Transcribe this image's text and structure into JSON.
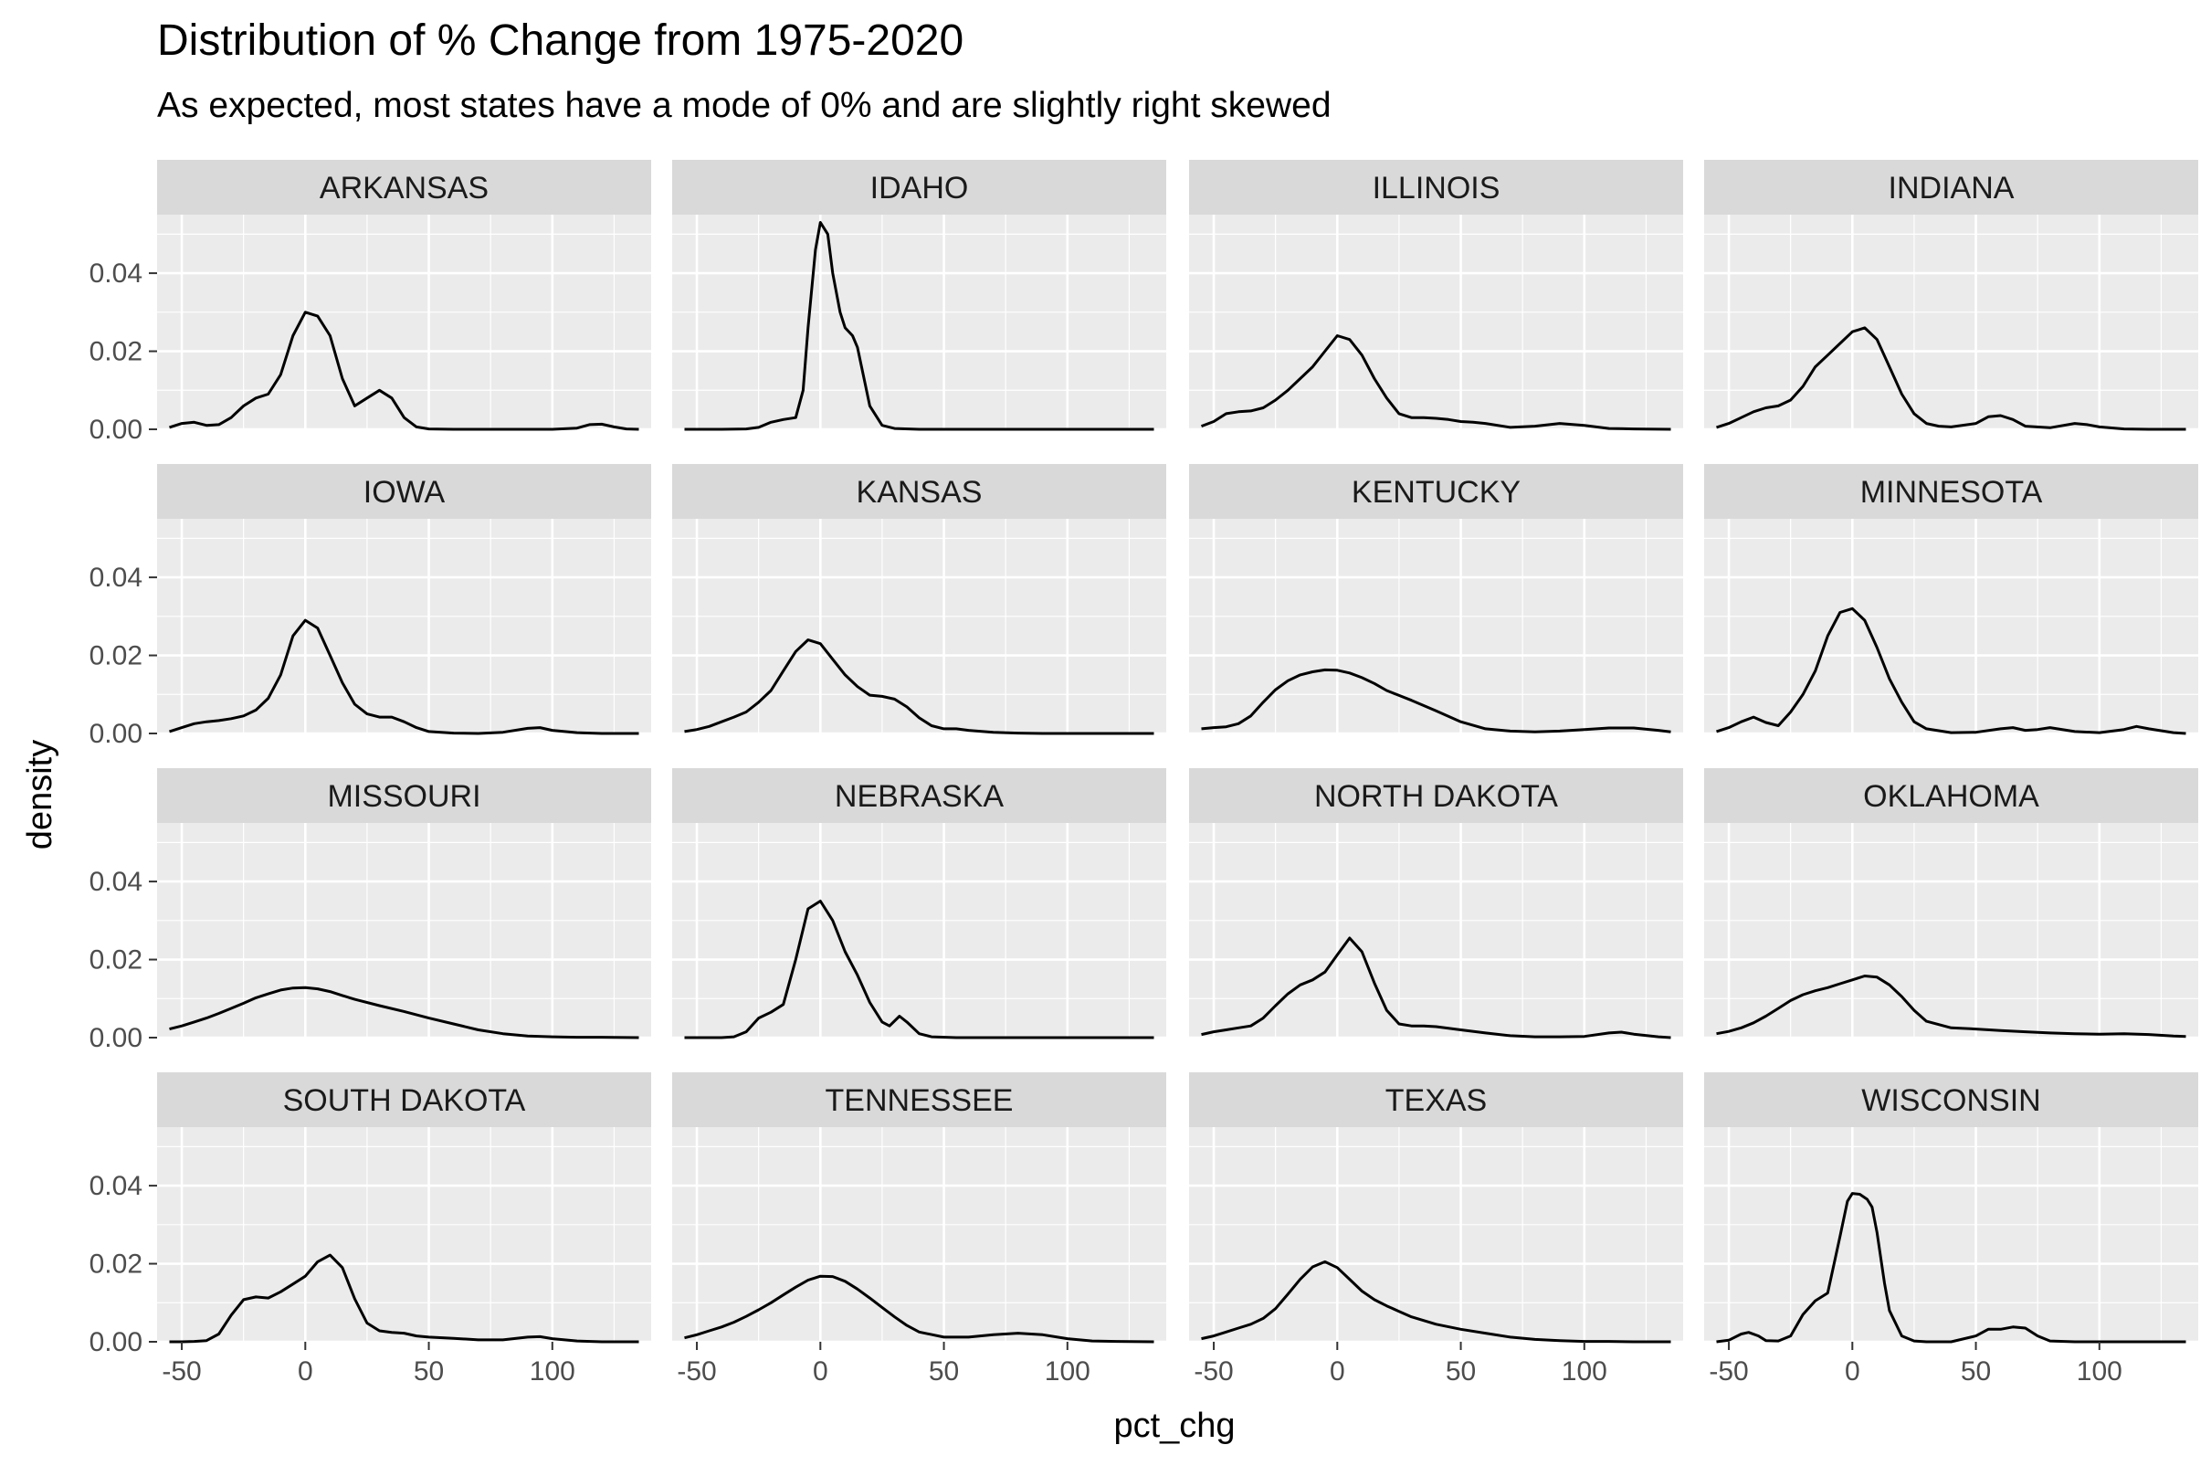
{
  "chart_data": {
    "type": "line",
    "subtype": "faceted-density",
    "title": "Distribution of % Change from 1975-2020",
    "subtitle": "As expected, most states have a mode of 0% and are slightly right skewed",
    "xlabel": "pct_chg",
    "ylabel": "density",
    "xlim": [
      -60,
      140
    ],
    "ylim": [
      0,
      0.055
    ],
    "x_ticks": [
      -50,
      0,
      50,
      100
    ],
    "x_tick_labels": [
      "-50",
      "0",
      "50",
      "100"
    ],
    "y_ticks": [
      0,
      0.02,
      0.04
    ],
    "y_tick_labels": [
      "0.00",
      "0.02",
      "0.04"
    ],
    "grid": true,
    "panel_background": "#ebebeb",
    "strip_background": "#d9d9d9",
    "line_color": "#000000",
    "grid_color": "#ffffff",
    "series": [
      {
        "name": "ARKANSAS",
        "x": [
          -55,
          -50,
          -45,
          -40,
          -35,
          -30,
          -25,
          -20,
          -15,
          -10,
          -5,
          0,
          5,
          10,
          15,
          20,
          25,
          30,
          35,
          40,
          45,
          50,
          60,
          70,
          80,
          90,
          100,
          110,
          115,
          120,
          125,
          130,
          135
        ],
        "y": [
          0.0005,
          0.0015,
          0.0018,
          0.001,
          0.0012,
          0.003,
          0.006,
          0.008,
          0.009,
          0.014,
          0.024,
          0.03,
          0.029,
          0.024,
          0.013,
          0.006,
          0.008,
          0.01,
          0.008,
          0.003,
          0.0006,
          0.0001,
          0,
          0,
          0,
          0,
          0,
          0.0003,
          0.0012,
          0.0013,
          0.0006,
          0.0001,
          0
        ]
      },
      {
        "name": "IDAHO",
        "x": [
          -55,
          -40,
          -30,
          -25,
          -20,
          -15,
          -10,
          -7,
          -5,
          -2,
          0,
          3,
          5,
          8,
          10,
          13,
          15,
          18,
          20,
          25,
          30,
          40,
          60,
          80,
          100,
          120,
          135
        ],
        "y": [
          0,
          0,
          0.0001,
          0.0005,
          0.0018,
          0.0025,
          0.003,
          0.01,
          0.026,
          0.046,
          0.053,
          0.05,
          0.04,
          0.03,
          0.026,
          0.024,
          0.021,
          0.012,
          0.006,
          0.001,
          0.0002,
          0,
          0,
          0,
          0,
          0,
          0
        ]
      },
      {
        "name": "ILLINOIS",
        "x": [
          -55,
          -50,
          -45,
          -40,
          -35,
          -30,
          -25,
          -20,
          -15,
          -10,
          -5,
          0,
          5,
          10,
          15,
          20,
          25,
          30,
          35,
          40,
          45,
          50,
          55,
          60,
          70,
          80,
          90,
          100,
          110,
          120,
          135
        ],
        "y": [
          0.0008,
          0.002,
          0.004,
          0.0045,
          0.0047,
          0.0055,
          0.0075,
          0.01,
          0.013,
          0.016,
          0.02,
          0.024,
          0.023,
          0.019,
          0.013,
          0.008,
          0.004,
          0.003,
          0.003,
          0.0028,
          0.0025,
          0.002,
          0.0018,
          0.0015,
          0.0005,
          0.0008,
          0.0015,
          0.001,
          0.0002,
          0.0001,
          0
        ]
      },
      {
        "name": "INDIANA",
        "x": [
          -55,
          -50,
          -45,
          -40,
          -35,
          -30,
          -25,
          -20,
          -15,
          -10,
          -5,
          0,
          5,
          10,
          15,
          20,
          25,
          30,
          35,
          40,
          50,
          55,
          60,
          65,
          70,
          80,
          90,
          95,
          100,
          110,
          120,
          135
        ],
        "y": [
          0.0005,
          0.0015,
          0.003,
          0.0045,
          0.0055,
          0.006,
          0.0075,
          0.011,
          0.016,
          0.019,
          0.022,
          0.025,
          0.026,
          0.023,
          0.016,
          0.009,
          0.004,
          0.0015,
          0.0008,
          0.0006,
          0.0015,
          0.0032,
          0.0035,
          0.0025,
          0.0008,
          0.0004,
          0.0015,
          0.0012,
          0.0006,
          0.0001,
          0,
          0
        ]
      },
      {
        "name": "IOWA",
        "x": [
          -55,
          -50,
          -45,
          -40,
          -35,
          -30,
          -25,
          -20,
          -15,
          -10,
          -5,
          0,
          5,
          10,
          15,
          20,
          25,
          30,
          35,
          40,
          45,
          50,
          60,
          70,
          80,
          90,
          95,
          100,
          110,
          120,
          135
        ],
        "y": [
          0.0005,
          0.0015,
          0.0025,
          0.003,
          0.0033,
          0.0038,
          0.0045,
          0.006,
          0.009,
          0.015,
          0.025,
          0.029,
          0.027,
          0.02,
          0.013,
          0.0075,
          0.005,
          0.0042,
          0.0042,
          0.003,
          0.0015,
          0.0005,
          0.0001,
          0,
          0.0003,
          0.0013,
          0.0015,
          0.0008,
          0.0002,
          0,
          0
        ]
      },
      {
        "name": "KANSAS",
        "x": [
          -55,
          -50,
          -45,
          -40,
          -35,
          -30,
          -25,
          -20,
          -15,
          -10,
          -5,
          0,
          5,
          10,
          15,
          20,
          25,
          30,
          35,
          40,
          45,
          50,
          55,
          60,
          70,
          80,
          90,
          100,
          120,
          135
        ],
        "y": [
          0.0005,
          0.001,
          0.0018,
          0.003,
          0.0042,
          0.0055,
          0.008,
          0.011,
          0.016,
          0.021,
          0.024,
          0.023,
          0.019,
          0.015,
          0.012,
          0.0098,
          0.0095,
          0.0088,
          0.0068,
          0.004,
          0.002,
          0.0012,
          0.0012,
          0.0008,
          0.0003,
          0.0001,
          0,
          0,
          0,
          0
        ]
      },
      {
        "name": "KENTUCKY",
        "x": [
          -55,
          -50,
          -45,
          -40,
          -35,
          -30,
          -25,
          -20,
          -15,
          -10,
          -5,
          0,
          5,
          10,
          15,
          20,
          30,
          40,
          50,
          60,
          70,
          80,
          90,
          100,
          110,
          120,
          130,
          135
        ],
        "y": [
          0.0012,
          0.0015,
          0.0017,
          0.0025,
          0.0045,
          0.008,
          0.0112,
          0.0135,
          0.015,
          0.0158,
          0.0163,
          0.0162,
          0.0155,
          0.0143,
          0.0128,
          0.011,
          0.0085,
          0.0058,
          0.003,
          0.0012,
          0.0006,
          0.0004,
          0.0006,
          0.001,
          0.0014,
          0.0014,
          0.0008,
          0.0004
        ]
      },
      {
        "name": "MINNESOTA",
        "x": [
          -55,
          -50,
          -45,
          -40,
          -35,
          -30,
          -25,
          -20,
          -15,
          -10,
          -5,
          0,
          5,
          10,
          15,
          20,
          25,
          30,
          40,
          50,
          60,
          65,
          70,
          75,
          80,
          90,
          100,
          110,
          115,
          120,
          130,
          135
        ],
        "y": [
          0.0005,
          0.0015,
          0.003,
          0.0042,
          0.0028,
          0.002,
          0.0055,
          0.01,
          0.016,
          0.025,
          0.031,
          0.032,
          0.029,
          0.022,
          0.014,
          0.008,
          0.003,
          0.0012,
          0.0002,
          0.0003,
          0.0012,
          0.0015,
          0.0008,
          0.001,
          0.0015,
          0.0005,
          0.0002,
          0.001,
          0.0018,
          0.0012,
          0.0002,
          0
        ]
      },
      {
        "name": "MISSOURI",
        "x": [
          -55,
          -50,
          -45,
          -40,
          -35,
          -30,
          -25,
          -20,
          -15,
          -10,
          -5,
          0,
          5,
          10,
          15,
          20,
          30,
          40,
          50,
          60,
          70,
          80,
          90,
          100,
          110,
          120,
          135
        ],
        "y": [
          0.0022,
          0.003,
          0.004,
          0.005,
          0.0062,
          0.0075,
          0.0088,
          0.0102,
          0.0112,
          0.0122,
          0.0127,
          0.0128,
          0.0125,
          0.0118,
          0.0108,
          0.0098,
          0.0082,
          0.0067,
          0.005,
          0.0035,
          0.002,
          0.001,
          0.0004,
          0.0002,
          0.0001,
          0.0001,
          0
        ]
      },
      {
        "name": "NEBRASKA",
        "x": [
          -55,
          -40,
          -35,
          -30,
          -25,
          -20,
          -15,
          -10,
          -5,
          0,
          5,
          10,
          15,
          20,
          25,
          28,
          32,
          35,
          40,
          45,
          55,
          70,
          90,
          110,
          135
        ],
        "y": [
          0,
          0,
          0.0002,
          0.0015,
          0.005,
          0.0065,
          0.0085,
          0.02,
          0.033,
          0.035,
          0.03,
          0.022,
          0.016,
          0.009,
          0.004,
          0.003,
          0.0055,
          0.004,
          0.001,
          0.0002,
          0,
          0,
          0,
          0,
          0
        ]
      },
      {
        "name": "NORTH DAKOTA",
        "x": [
          -55,
          -50,
          -45,
          -40,
          -35,
          -30,
          -25,
          -20,
          -15,
          -10,
          -5,
          0,
          5,
          10,
          15,
          20,
          25,
          30,
          35,
          40,
          50,
          60,
          70,
          80,
          90,
          100,
          110,
          115,
          120,
          130,
          135
        ],
        "y": [
          0.0008,
          0.0015,
          0.002,
          0.0025,
          0.003,
          0.005,
          0.0082,
          0.0112,
          0.0135,
          0.0148,
          0.0168,
          0.0212,
          0.0255,
          0.022,
          0.014,
          0.007,
          0.0035,
          0.003,
          0.003,
          0.0028,
          0.002,
          0.0012,
          0.0005,
          0.0002,
          0.0002,
          0.0003,
          0.0012,
          0.0014,
          0.0009,
          0.0002,
          0
        ]
      },
      {
        "name": "OKLAHOMA",
        "x": [
          -55,
          -50,
          -45,
          -40,
          -35,
          -30,
          -25,
          -20,
          -15,
          -10,
          -5,
          0,
          5,
          10,
          15,
          20,
          25,
          30,
          40,
          50,
          60,
          70,
          80,
          90,
          100,
          110,
          120,
          130,
          135
        ],
        "y": [
          0.001,
          0.0016,
          0.0025,
          0.0038,
          0.0055,
          0.0075,
          0.0095,
          0.011,
          0.012,
          0.0128,
          0.0138,
          0.0148,
          0.0158,
          0.0155,
          0.0135,
          0.0105,
          0.007,
          0.0042,
          0.0025,
          0.0022,
          0.0018,
          0.0015,
          0.0012,
          0.001,
          0.0009,
          0.001,
          0.0008,
          0.0004,
          0.0003
        ]
      },
      {
        "name": "SOUTH DAKOTA",
        "x": [
          -55,
          -50,
          -45,
          -40,
          -35,
          -30,
          -25,
          -20,
          -15,
          -10,
          -5,
          0,
          5,
          10,
          15,
          20,
          25,
          30,
          35,
          40,
          45,
          50,
          60,
          70,
          80,
          90,
          95,
          100,
          110,
          120,
          135
        ],
        "y": [
          0,
          0,
          0.0001,
          0.0003,
          0.002,
          0.0068,
          0.0108,
          0.0115,
          0.0112,
          0.0128,
          0.0148,
          0.0168,
          0.0205,
          0.0222,
          0.019,
          0.011,
          0.0048,
          0.0028,
          0.0024,
          0.0022,
          0.0015,
          0.0012,
          0.0009,
          0.0005,
          0.0005,
          0.0012,
          0.0013,
          0.0008,
          0.0002,
          0,
          0
        ]
      },
      {
        "name": "TENNESSEE",
        "x": [
          -55,
          -50,
          -45,
          -40,
          -35,
          -30,
          -25,
          -20,
          -15,
          -10,
          -5,
          0,
          5,
          10,
          15,
          20,
          25,
          30,
          35,
          40,
          50,
          60,
          70,
          80,
          90,
          100,
          110,
          120,
          135
        ],
        "y": [
          0.001,
          0.0018,
          0.0028,
          0.0038,
          0.005,
          0.0065,
          0.0082,
          0.01,
          0.012,
          0.014,
          0.0158,
          0.0168,
          0.0167,
          0.0155,
          0.0135,
          0.0112,
          0.0088,
          0.0064,
          0.0042,
          0.0025,
          0.0012,
          0.0012,
          0.0018,
          0.0022,
          0.0018,
          0.0008,
          0.0002,
          0.0001,
          0
        ]
      },
      {
        "name": "TEXAS",
        "x": [
          -55,
          -50,
          -45,
          -40,
          -35,
          -30,
          -25,
          -20,
          -15,
          -10,
          -5,
          0,
          5,
          10,
          15,
          20,
          25,
          30,
          40,
          50,
          60,
          70,
          80,
          90,
          100,
          110,
          120,
          135
        ],
        "y": [
          0.0008,
          0.0015,
          0.0025,
          0.0035,
          0.0045,
          0.006,
          0.0085,
          0.0122,
          0.016,
          0.0192,
          0.0205,
          0.019,
          0.016,
          0.013,
          0.0108,
          0.0092,
          0.0078,
          0.0064,
          0.0045,
          0.0032,
          0.0022,
          0.0012,
          0.0006,
          0.0003,
          0.0001,
          0.0001,
          0,
          0
        ]
      },
      {
        "name": "WISCONSIN",
        "x": [
          -55,
          -50,
          -45,
          -42,
          -38,
          -35,
          -30,
          -25,
          -20,
          -15,
          -10,
          -5,
          -2,
          0,
          3,
          6,
          8,
          10,
          13,
          15,
          20,
          25,
          30,
          40,
          50,
          55,
          60,
          65,
          70,
          75,
          80,
          90,
          110,
          135
        ],
        "y": [
          0,
          0.0004,
          0.002,
          0.0024,
          0.0015,
          0.0003,
          0.0002,
          0.0015,
          0.007,
          0.0105,
          0.0125,
          0.027,
          0.036,
          0.038,
          0.0378,
          0.0365,
          0.0345,
          0.028,
          0.015,
          0.008,
          0.0015,
          0.0002,
          0,
          0,
          0.0015,
          0.0032,
          0.0032,
          0.0038,
          0.0035,
          0.0015,
          0.0002,
          0,
          0,
          0
        ]
      }
    ]
  }
}
